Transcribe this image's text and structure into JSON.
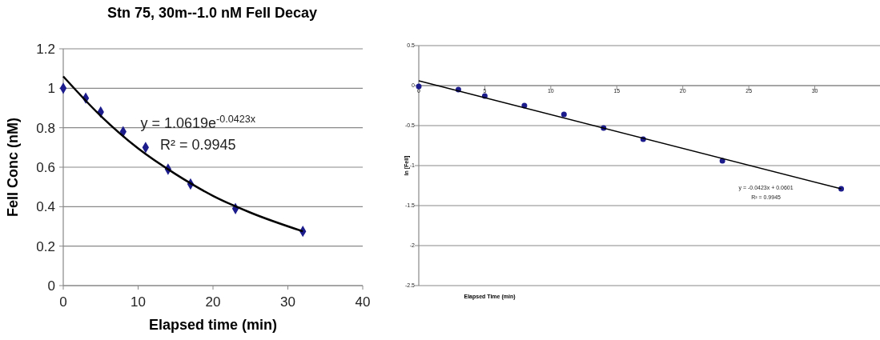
{
  "chart_data": [
    {
      "type": "scatter",
      "title": "Stn 75, 30m--1.0 nM FeII Decay",
      "xlabel": "Elapsed time (min)",
      "ylabel": "FeII Conc (nM)",
      "xlim": [
        0,
        40
      ],
      "xticks": [
        0,
        10,
        20,
        30,
        40
      ],
      "ylim": [
        0,
        1.2
      ],
      "yticks": [
        0,
        0.2,
        0.4,
        0.6,
        0.8,
        1,
        1.2
      ],
      "grid": "y",
      "marker": "diamond",
      "annotations": [
        "y = 1.0619e$^{-0.0423x}$",
        "R² = 0.9945"
      ],
      "series": [
        {
          "color": "#1c1c8c",
          "x": [
            0,
            3,
            5,
            8,
            11,
            14,
            17,
            23,
            32
          ],
          "values": [
            1.0,
            0.95,
            0.88,
            0.78,
            0.7,
            0.59,
            0.515,
            0.39,
            0.275
          ]
        },
        {
          "type": "line",
          "marker": "none",
          "color": "#000000",
          "x": [
            0,
            5,
            10,
            15,
            20,
            25,
            32
          ],
          "values": [
            1.06,
            0.86,
            0.695,
            0.565,
            0.455,
            0.37,
            0.275
          ]
        }
      ]
    },
    {
      "type": "scatter",
      "xlabel": "Elapsed Time (min)",
      "ylabel": "ln [FeII]",
      "xlim": [
        0,
        35
      ],
      "xticks": [
        0,
        5,
        10,
        15,
        20,
        25,
        30
      ],
      "ylim": [
        -2.5,
        0.5
      ],
      "yticks": [
        -2.5,
        -2,
        -1.5,
        -1,
        -0.5,
        0,
        0.5
      ],
      "grid": "y",
      "marker": "circle",
      "annotations": [
        "y = -0.0423x + 0.0601",
        "R² = 0.9945"
      ],
      "series": [
        {
          "color": "#1c1c8c",
          "x": [
            0,
            3,
            5,
            8,
            11,
            14,
            17,
            23,
            32
          ],
          "values": [
            -0.01,
            -0.05,
            -0.13,
            -0.25,
            -0.36,
            -0.53,
            -0.67,
            -0.94,
            -1.29
          ]
        },
        {
          "type": "line",
          "marker": "none",
          "color": "#000000",
          "x": [
            0,
            32
          ],
          "values": [
            0.06,
            -1.29
          ]
        }
      ]
    }
  ]
}
